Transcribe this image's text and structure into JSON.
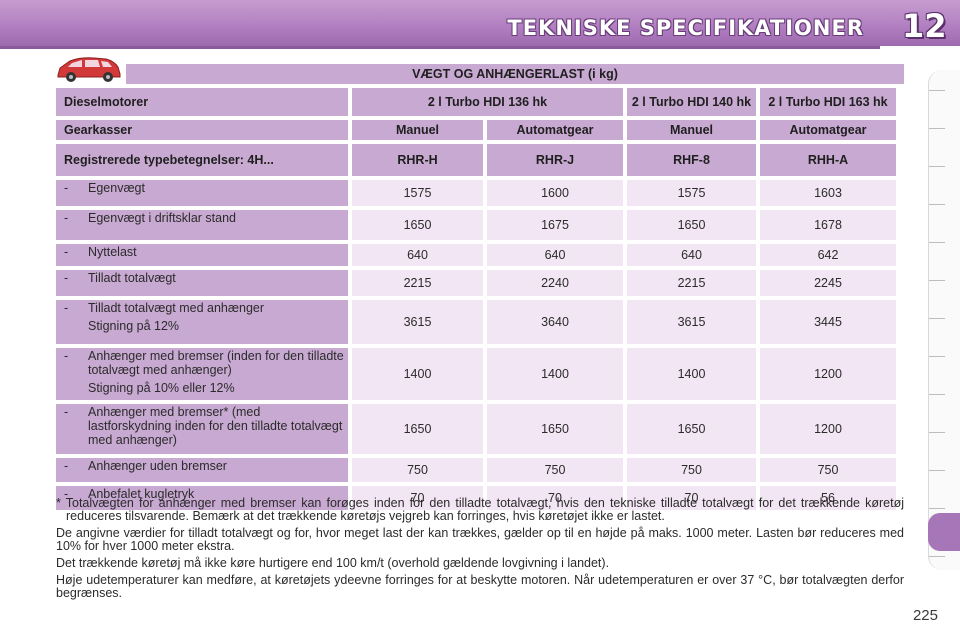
{
  "header": {
    "title": "TEKNISKE SPECIFIKATIONER",
    "chapter": "12"
  },
  "section": {
    "title": "VÆGT OG ANHÆNGERLAST (i kg)"
  },
  "table": {
    "engine_label": "Dieselmotorer",
    "engines": [
      "2 l Turbo HDI 136 hk",
      "2 l Turbo HDI 140 hk",
      "2 l Turbo HDI 163 hk"
    ],
    "gearbox_label": "Gearkasser",
    "gearboxes": [
      "Manuel",
      "Automatgear",
      "Manuel",
      "Automatgear"
    ],
    "type_label": "Registrerede typebetegnelser: 4H...",
    "types": [
      "RHR-H",
      "RHR-J",
      "RHF-8",
      "RHH-A"
    ],
    "rows": [
      {
        "label": "Egenvægt",
        "sub": "",
        "values": [
          "1575",
          "1600",
          "1575",
          "1603"
        ]
      },
      {
        "label": "Egenvægt i driftsklar stand",
        "sub": "",
        "values": [
          "1650",
          "1675",
          "1650",
          "1678"
        ]
      },
      {
        "label": "Nyttelast",
        "sub": "",
        "values": [
          "640",
          "640",
          "640",
          "642"
        ]
      },
      {
        "label": "Tilladt totalvægt",
        "sub": "",
        "values": [
          "2215",
          "2240",
          "2215",
          "2245"
        ]
      },
      {
        "label": "Tilladt totalvægt med anhænger",
        "sub": "Stigning på 12%",
        "values": [
          "3615",
          "3640",
          "3615",
          "3445"
        ]
      },
      {
        "label": "Anhænger med bremser (inden for den tilladte totalvægt med anhænger)",
        "sub": "Stigning på 10% eller 12%",
        "values": [
          "1400",
          "1400",
          "1400",
          "1200"
        ]
      },
      {
        "label": "Anhænger med bremser* (med lastforskydning inden for den tilladte totalvægt med anhænger)",
        "sub": "",
        "values": [
          "1650",
          "1650",
          "1650",
          "1200"
        ]
      },
      {
        "label": "Anhænger uden bremser",
        "sub": "",
        "values": [
          "750",
          "750",
          "750",
          "750"
        ]
      },
      {
        "label": "Anbefalet kugletryk",
        "sub": "",
        "values": [
          "70",
          "70",
          "70",
          "56"
        ]
      }
    ]
  },
  "notes": [
    "* Totalvægten for anhænger med bremser kan forøges inden for den tilladte totalvægt, hvis den tekniske tilladte totalvægt for det trækkende køretøj reduceres tilsvarende. Bemærk at det trækkende køretøjs vejgreb kan forringes, hvis køretøjet ikke er lastet.",
    "De angivne værdier for tilladt totalvægt og for, hvor meget last der kan trækkes, gælder op til en højde på maks. 1000 meter. Lasten bør reduceres med 10% for hver 1000 meter ekstra.",
    "Det trækkende køretøj må ikke køre hurtigere end 100 km/t (overhold gældende lovgivning i landet).",
    "Høje udetemperaturer kan medføre, at køretøjets ydeevne forringes for at beskytte motoren. Når udetemperaturen er over 37 °C, bør totalvægten derfor begrænses."
  ],
  "page_number": "225",
  "colors": {
    "header_purple": "#b07ec0",
    "cell_header": "#c8a9d2",
    "cell_value": "#f3e6f4",
    "car_red": "#d23a3a"
  }
}
